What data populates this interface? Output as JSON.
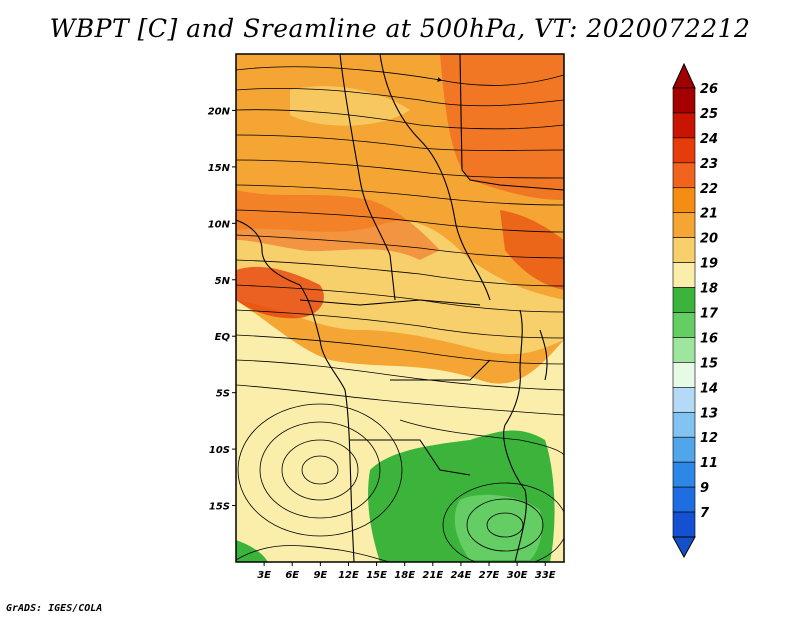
{
  "title": "WBPT [C] and Sreamline at 500hPa, VT: 2020072212",
  "footer": "GrADS: IGES/COLA",
  "map": {
    "lat_labels": [
      "20N",
      "15N",
      "10N",
      "5N",
      "EQ",
      "5S",
      "10S",
      "15S"
    ],
    "lat_values": [
      20,
      15,
      10,
      5,
      0,
      -5,
      -10,
      -15
    ],
    "lon_labels": [
      "3E",
      "6E",
      "9E",
      "12E",
      "15E",
      "18E",
      "21E",
      "24E",
      "27E",
      "30E",
      "33E"
    ],
    "lon_values": [
      3,
      6,
      9,
      12,
      15,
      18,
      21,
      24,
      27,
      30,
      33
    ],
    "lon_range": [
      0,
      35
    ],
    "lat_range": [
      -20,
      25
    ]
  },
  "colorbar": {
    "labels": [
      "26",
      "25",
      "24",
      "23",
      "22",
      "21",
      "20",
      "19",
      "18",
      "17",
      "16",
      "15",
      "14",
      "13",
      "12",
      "11",
      "9",
      "7"
    ],
    "colors": [
      "#a50000",
      "#c81400",
      "#e63c0a",
      "#f0641e",
      "#f58c14",
      "#f5a533",
      "#f7cf6b",
      "#fbeeaa",
      "#3cb43c",
      "#64cd64",
      "#9ee69e",
      "#e6fae6",
      "#b4daf7",
      "#82c3f2",
      "#50a5eb",
      "#2d87e6",
      "#1e6ee1",
      "#1450d2"
    ],
    "top_color": "#a00000",
    "bottom_color": "#1450c8"
  }
}
